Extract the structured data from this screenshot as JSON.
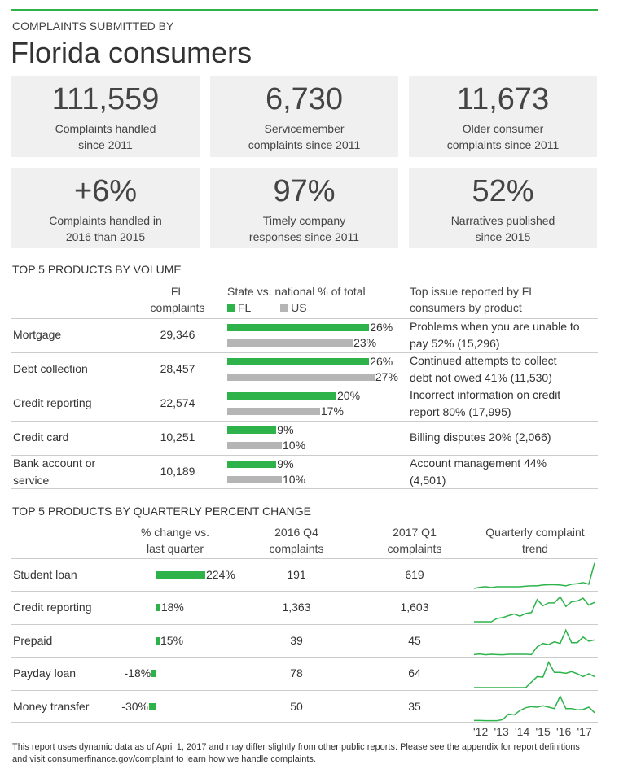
{
  "header": {
    "kicker": "COMPLAINTS SUBMITTED BY",
    "title": "Florida consumers"
  },
  "stats": [
    {
      "value": "111,559",
      "label1": "Complaints handled",
      "label2": "since 2011"
    },
    {
      "value": "6,730",
      "label1": "Servicemember",
      "label2": "complaints since 2011"
    },
    {
      "value": "11,673",
      "label1": "Older consumer",
      "label2": "complaints since 2011"
    },
    {
      "value": "+6%",
      "label1": "Complaints handled in",
      "label2": "2016 than 2015"
    },
    {
      "value": "97%",
      "label1": "Timely company",
      "label2": "responses since 2011"
    },
    {
      "value": "52%",
      "label1": "Narratives published",
      "label2": "since 2015"
    }
  ],
  "colors": {
    "fl": "#2db34a",
    "us": "#b5b5b5"
  },
  "chart_data": [
    {
      "type": "bar",
      "title": "TOP 5 PRODUCTS BY VOLUME",
      "headers": {
        "fl1": "FL",
        "fl2": "complaints",
        "sv": "State vs. national % of total",
        "legend_fl": "FL",
        "legend_us": "US",
        "issue1": "Top issue reported by FL",
        "issue2": "consumers by product"
      },
      "rows": [
        {
          "product": [
            "Mortgage"
          ],
          "fl_complaints": "29,346",
          "fl": 26,
          "us": 23,
          "issue": [
            "Problems when you are unable to",
            "pay  52% (15,296)"
          ]
        },
        {
          "product": [
            "Debt collection"
          ],
          "fl_complaints": "28,457",
          "fl": 26,
          "us": 27,
          "issue": [
            "Continued attempts to collect",
            "debt not owed 41% (11,530)"
          ]
        },
        {
          "product": [
            "Credit reporting"
          ],
          "fl_complaints": "22,574",
          "fl": 20,
          "us": 17,
          "issue": [
            "Incorrect information on credit",
            "report 80% (17,995)"
          ]
        },
        {
          "product": [
            "Credit card"
          ],
          "fl_complaints": "10,251",
          "fl": 9,
          "us": 10,
          "issue": [
            "Billing disputes 20% (2,066)"
          ]
        },
        {
          "product": [
            "Bank account or",
            "service"
          ],
          "fl_complaints": "10,189",
          "fl": 9,
          "us": 10,
          "issue": [
            "Account management 44%",
            "(4,501)"
          ]
        }
      ]
    },
    {
      "type": "bar",
      "title": "TOP 5 PRODUCTS BY QUARTERLY PERCENT CHANGE",
      "headers": {
        "chg1": "% change vs.",
        "chg2": "last quarter",
        "q4a": "2016 Q4",
        "q4b": "complaints",
        "q1a": "2017 Q1",
        "q1b": "complaints",
        "tr1": "Quarterly complaint",
        "tr2": "trend"
      },
      "years": [
        "'12",
        "'13",
        "'14",
        "'15",
        "'16",
        "'17"
      ],
      "rows": [
        {
          "product": "Student loan",
          "change": 224,
          "change_label": "224%",
          "q4": "191",
          "q1": "619",
          "trend": [
            3,
            7,
            9,
            6,
            9,
            9,
            9,
            9,
            9,
            11,
            12,
            12,
            15,
            16,
            16,
            15,
            12,
            18,
            20,
            24,
            18,
            95
          ]
        },
        {
          "product": "Credit reporting",
          "change": 18,
          "change_label": "18%",
          "q4": "1,363",
          "q1": "1,603",
          "trend": [
            0,
            0,
            0,
            0,
            12,
            15,
            22,
            28,
            20,
            30,
            33,
            80,
            58,
            68,
            68,
            90,
            55,
            72,
            75,
            85,
            60,
            70
          ]
        },
        {
          "product": "Prepaid",
          "change": 15,
          "change_label": "15%",
          "q4": "39",
          "q1": "45",
          "trend": [
            2,
            4,
            1,
            3,
            2,
            1,
            3,
            3,
            3,
            3,
            2,
            30,
            42,
            38,
            48,
            42,
            90,
            45,
            45,
            65,
            50,
            55
          ]
        },
        {
          "product": "Payday loan",
          "change": -18,
          "change_label": "-18%",
          "q4": "78",
          "q1": "64",
          "trend": [
            0,
            0,
            0,
            0,
            0,
            0,
            0,
            0,
            0,
            0,
            20,
            40,
            38,
            92,
            55,
            55,
            52,
            58,
            50,
            40,
            50,
            40
          ]
        },
        {
          "product": "Money transfer",
          "change": -30,
          "change_label": "-30%",
          "q4": "50",
          "q1": "35",
          "trend": [
            2,
            2,
            1,
            1,
            1,
            5,
            25,
            22,
            38,
            48,
            52,
            50,
            55,
            50,
            45,
            90,
            45,
            45,
            40,
            42,
            50,
            30
          ]
        }
      ]
    }
  ],
  "footer": "This report uses dynamic data as of April 1, 2017 and may differ slightly from other public reports.  Please see the appendix for report definitions and visit consumerfinance.gov/complaint to learn how we handle complaints."
}
